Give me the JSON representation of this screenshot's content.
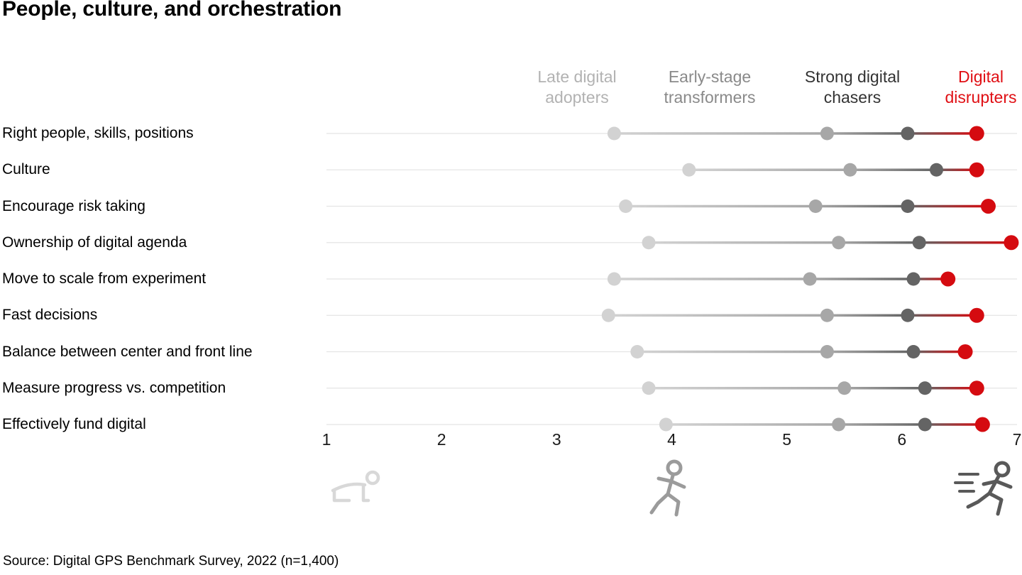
{
  "title": "People, culture, and orchestration",
  "source": "Source: Digital GPS Benchmark Survey, 2022 (n=1,400)",
  "icons": [
    {
      "name": "crawling-person-icon",
      "color": "#d8d8d8"
    },
    {
      "name": "running-person-icon",
      "color": "#9b9b9b"
    },
    {
      "name": "sprinting-person-icon",
      "color": "#595959"
    }
  ],
  "chart_data": {
    "type": "scatter",
    "subtype": "dumbbell-dot-plot",
    "title": "People, culture, and orchestration",
    "xlabel": "",
    "ylabel": "",
    "xlim": [
      1,
      7
    ],
    "x_ticks": [
      "1",
      "2",
      "3",
      "4",
      "5",
      "6",
      "7"
    ],
    "grid": "horizontal-hairlines",
    "legend_position": "top-as-column-headers",
    "categories": [
      "Right people, skills, positions",
      "Culture",
      "Encourage risk taking",
      "Ownership of digital agenda",
      "Move to scale from experiment",
      "Fast decisions",
      "Balance between center and front line",
      "Measure progress vs. competition",
      "Effectively fund digital"
    ],
    "series": [
      {
        "name": "Late digital adopters",
        "color": "#d2d2d2",
        "label_color": "#b2b2b2",
        "values": [
          3.5,
          4.15,
          3.6,
          3.8,
          3.5,
          3.45,
          3.7,
          3.8,
          3.95
        ]
      },
      {
        "name": "Early-stage transformers",
        "color": "#a7a7a7",
        "label_color": "#8a8a8a",
        "values": [
          5.35,
          5.55,
          5.25,
          5.45,
          5.2,
          5.35,
          5.35,
          5.5,
          5.45
        ]
      },
      {
        "name": "Strong digital chasers",
        "color": "#646464",
        "label_color": "#333333",
        "values": [
          6.05,
          6.3,
          6.05,
          6.15,
          6.1,
          6.05,
          6.1,
          6.2,
          6.2
        ]
      },
      {
        "name": "Digital disrupters",
        "color": "#d50b10",
        "label_color": "#e00f14",
        "values": [
          6.65,
          6.65,
          6.75,
          6.95,
          6.4,
          6.65,
          6.55,
          6.65,
          6.7
        ]
      }
    ],
    "baseline_color": "#e4e4e4",
    "connector_width": 3.5
  }
}
